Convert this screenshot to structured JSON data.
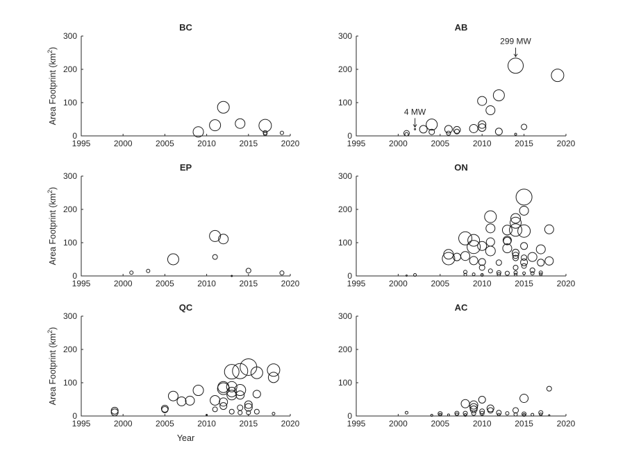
{
  "chart_data": [
    {
      "type": "scatter",
      "title": "BC",
      "xlabel": "",
      "ylabel": "Area Footprint (km2)",
      "xlim": [
        1995,
        2020
      ],
      "ylim": [
        0,
        300
      ],
      "xticks": [
        "1995",
        "2000",
        "2005",
        "2010",
        "2015",
        "2020"
      ],
      "yticks": [
        "0",
        "100",
        "200",
        "300"
      ],
      "points": [
        {
          "x": 2009,
          "y": 12,
          "s": 15
        },
        {
          "x": 2011,
          "y": 32,
          "s": 16
        },
        {
          "x": 2012,
          "y": 86,
          "s": 17
        },
        {
          "x": 2014,
          "y": 37,
          "s": 14
        },
        {
          "x": 2017,
          "y": 31,
          "s": 18
        },
        {
          "x": 2017,
          "y": 10,
          "s": 6
        },
        {
          "x": 2017,
          "y": 6,
          "s": 5
        },
        {
          "x": 2019,
          "y": 9,
          "s": 5
        }
      ],
      "annotations": []
    },
    {
      "type": "scatter",
      "title": "AB",
      "xlabel": "",
      "ylabel": "",
      "xlim": [
        1995,
        2020
      ],
      "ylim": [
        0,
        300
      ],
      "xticks": [
        "1995",
        "2000",
        "2005",
        "2010",
        "2015",
        "2020"
      ],
      "yticks": [
        "0",
        "100",
        "200",
        "300"
      ],
      "points": [
        {
          "x": 2001,
          "y": 8,
          "s": 8
        },
        {
          "x": 2001,
          "y": 5,
          "s": 5
        },
        {
          "x": 2002,
          "y": 20,
          "s": 2
        },
        {
          "x": 2003,
          "y": 20,
          "s": 11
        },
        {
          "x": 2004,
          "y": 34,
          "s": 16
        },
        {
          "x": 2004,
          "y": 12,
          "s": 8
        },
        {
          "x": 2006,
          "y": 20,
          "s": 11
        },
        {
          "x": 2006,
          "y": 8,
          "s": 6
        },
        {
          "x": 2007,
          "y": 18,
          "s": 10
        },
        {
          "x": 2007,
          "y": 13,
          "s": 7
        },
        {
          "x": 2009,
          "y": 22,
          "s": 12
        },
        {
          "x": 2010,
          "y": 105,
          "s": 13
        },
        {
          "x": 2010,
          "y": 34,
          "s": 11
        },
        {
          "x": 2010,
          "y": 25,
          "s": 11
        },
        {
          "x": 2011,
          "y": 77,
          "s": 13
        },
        {
          "x": 2012,
          "y": 122,
          "s": 16
        },
        {
          "x": 2012,
          "y": 13,
          "s": 10
        },
        {
          "x": 2014,
          "y": 211,
          "s": 22
        },
        {
          "x": 2014,
          "y": 5,
          "s": 3
        },
        {
          "x": 2015,
          "y": 27,
          "s": 8
        },
        {
          "x": 2019,
          "y": 182,
          "s": 18
        }
      ],
      "annotations": [
        {
          "text": "4 MW",
          "x": 2002,
          "y": 20
        },
        {
          "text": "299 MW",
          "x": 2014,
          "y": 211
        }
      ]
    },
    {
      "type": "scatter",
      "title": "EP",
      "xlabel": "",
      "ylabel": "Area Footprint (km2)",
      "xlim": [
        1995,
        2020
      ],
      "ylim": [
        0,
        300
      ],
      "xticks": [
        "1995",
        "2000",
        "2005",
        "2010",
        "2015",
        "2020"
      ],
      "yticks": [
        "0",
        "100",
        "200",
        "300"
      ],
      "points": [
        {
          "x": 2001,
          "y": 10,
          "s": 5
        },
        {
          "x": 2003,
          "y": 15,
          "s": 5
        },
        {
          "x": 2006,
          "y": 50,
          "s": 16
        },
        {
          "x": 2011,
          "y": 120,
          "s": 16
        },
        {
          "x": 2011,
          "y": 57,
          "s": 7
        },
        {
          "x": 2012,
          "y": 111,
          "s": 14
        },
        {
          "x": 2013,
          "y": 0,
          "s": 2
        },
        {
          "x": 2015,
          "y": 16,
          "s": 7
        },
        {
          "x": 2019,
          "y": 9,
          "s": 6
        }
      ],
      "annotations": []
    },
    {
      "type": "scatter",
      "title": "ON",
      "xlabel": "",
      "ylabel": "",
      "xlim": [
        1995,
        2020
      ],
      "ylim": [
        0,
        300
      ],
      "xticks": [
        "1995",
        "2000",
        "2005",
        "2010",
        "2015",
        "2020"
      ],
      "yticks": [
        "0",
        "100",
        "200",
        "300"
      ],
      "points": [
        {
          "x": 2001,
          "y": 1,
          "s": 2
        },
        {
          "x": 2002,
          "y": 3,
          "s": 4
        },
        {
          "x": 2006,
          "y": 65,
          "s": 14
        },
        {
          "x": 2006,
          "y": 52,
          "s": 18
        },
        {
          "x": 2007,
          "y": 57,
          "s": 11
        },
        {
          "x": 2008,
          "y": 113,
          "s": 19
        },
        {
          "x": 2008,
          "y": 60,
          "s": 13
        },
        {
          "x": 2008,
          "y": 12,
          "s": 5
        },
        {
          "x": 2008,
          "y": 4,
          "s": 4
        },
        {
          "x": 2009,
          "y": 107,
          "s": 17
        },
        {
          "x": 2009,
          "y": 87,
          "s": 19
        },
        {
          "x": 2009,
          "y": 46,
          "s": 12
        },
        {
          "x": 2009,
          "y": 5,
          "s": 4
        },
        {
          "x": 2010,
          "y": 90,
          "s": 13
        },
        {
          "x": 2010,
          "y": 42,
          "s": 10
        },
        {
          "x": 2010,
          "y": 25,
          "s": 8
        },
        {
          "x": 2010,
          "y": 3,
          "s": 4
        },
        {
          "x": 2011,
          "y": 178,
          "s": 17
        },
        {
          "x": 2011,
          "y": 143,
          "s": 13
        },
        {
          "x": 2011,
          "y": 102,
          "s": 12
        },
        {
          "x": 2011,
          "y": 75,
          "s": 14
        },
        {
          "x": 2011,
          "y": 15,
          "s": 6
        },
        {
          "x": 2012,
          "y": 40,
          "s": 8
        },
        {
          "x": 2012,
          "y": 10,
          "s": 6
        },
        {
          "x": 2012,
          "y": 5,
          "s": 5
        },
        {
          "x": 2013,
          "y": 138,
          "s": 14
        },
        {
          "x": 2013,
          "y": 107,
          "s": 12
        },
        {
          "x": 2013,
          "y": 105,
          "s": 11
        },
        {
          "x": 2013,
          "y": 83,
          "s": 13
        },
        {
          "x": 2013,
          "y": 8,
          "s": 6
        },
        {
          "x": 2014,
          "y": 173,
          "s": 14
        },
        {
          "x": 2014,
          "y": 160,
          "s": 16
        },
        {
          "x": 2014,
          "y": 138,
          "s": 18
        },
        {
          "x": 2014,
          "y": 70,
          "s": 10
        },
        {
          "x": 2014,
          "y": 62,
          "s": 9
        },
        {
          "x": 2014,
          "y": 54,
          "s": 8
        },
        {
          "x": 2014,
          "y": 25,
          "s": 7
        },
        {
          "x": 2014,
          "y": 10,
          "s": 5
        },
        {
          "x": 2014,
          "y": 4,
          "s": 4
        },
        {
          "x": 2015,
          "y": 237,
          "s": 23
        },
        {
          "x": 2015,
          "y": 196,
          "s": 13
        },
        {
          "x": 2015,
          "y": 135,
          "s": 18
        },
        {
          "x": 2015,
          "y": 90,
          "s": 10
        },
        {
          "x": 2015,
          "y": 55,
          "s": 8
        },
        {
          "x": 2015,
          "y": 41,
          "s": 10
        },
        {
          "x": 2015,
          "y": 30,
          "s": 7
        },
        {
          "x": 2015,
          "y": 8,
          "s": 4
        },
        {
          "x": 2016,
          "y": 57,
          "s": 13
        },
        {
          "x": 2016,
          "y": 17,
          "s": 7
        },
        {
          "x": 2016,
          "y": 8,
          "s": 5
        },
        {
          "x": 2017,
          "y": 80,
          "s": 13
        },
        {
          "x": 2017,
          "y": 40,
          "s": 10
        },
        {
          "x": 2017,
          "y": 10,
          "s": 5
        },
        {
          "x": 2017,
          "y": 5,
          "s": 4
        },
        {
          "x": 2018,
          "y": 140,
          "s": 13
        },
        {
          "x": 2018,
          "y": 45,
          "s": 12
        }
      ],
      "annotations": []
    },
    {
      "type": "scatter",
      "title": "QC",
      "xlabel": "Year",
      "ylabel": "Area Footprint (km2)",
      "xlim": [
        1995,
        2020
      ],
      "ylim": [
        0,
        300
      ],
      "xticks": [
        "1995",
        "2000",
        "2005",
        "2010",
        "2015",
        "2020"
      ],
      "yticks": [
        "0",
        "100",
        "200",
        "300"
      ],
      "points": [
        {
          "x": 1999,
          "y": 16,
          "s": 10
        },
        {
          "x": 1999,
          "y": 11,
          "s": 10
        },
        {
          "x": 2005,
          "y": 22,
          "s": 10
        },
        {
          "x": 2005,
          "y": 19,
          "s": 9
        },
        {
          "x": 2006,
          "y": 60,
          "s": 14
        },
        {
          "x": 2007,
          "y": 44,
          "s": 13
        },
        {
          "x": 2008,
          "y": 46,
          "s": 13
        },
        {
          "x": 2009,
          "y": 77,
          "s": 15
        },
        {
          "x": 2010,
          "y": 3,
          "s": 2
        },
        {
          "x": 2011,
          "y": 47,
          "s": 14
        },
        {
          "x": 2011,
          "y": 20,
          "s": 7
        },
        {
          "x": 2012,
          "y": 87,
          "s": 16
        },
        {
          "x": 2012,
          "y": 82,
          "s": 17
        },
        {
          "x": 2012,
          "y": 42,
          "s": 12
        },
        {
          "x": 2012,
          "y": 30,
          "s": 10
        },
        {
          "x": 2013,
          "y": 133,
          "s": 21
        },
        {
          "x": 2013,
          "y": 88,
          "s": 15
        },
        {
          "x": 2013,
          "y": 72,
          "s": 14
        },
        {
          "x": 2013,
          "y": 63,
          "s": 14
        },
        {
          "x": 2013,
          "y": 13,
          "s": 7
        },
        {
          "x": 2014,
          "y": 135,
          "s": 22
        },
        {
          "x": 2014,
          "y": 78,
          "s": 16
        },
        {
          "x": 2014,
          "y": 63,
          "s": 12
        },
        {
          "x": 2014,
          "y": 25,
          "s": 8
        },
        {
          "x": 2014,
          "y": 10,
          "s": 6
        },
        {
          "x": 2015,
          "y": 147,
          "s": 24
        },
        {
          "x": 2015,
          "y": 34,
          "s": 11
        },
        {
          "x": 2015,
          "y": 26,
          "s": 11
        },
        {
          "x": 2015,
          "y": 10,
          "s": 6
        },
        {
          "x": 2016,
          "y": 130,
          "s": 17
        },
        {
          "x": 2016,
          "y": 66,
          "s": 11
        },
        {
          "x": 2016,
          "y": 13,
          "s": 7
        },
        {
          "x": 2018,
          "y": 138,
          "s": 18
        },
        {
          "x": 2018,
          "y": 116,
          "s": 15
        },
        {
          "x": 2018,
          "y": 7,
          "s": 4
        }
      ],
      "annotations": []
    },
    {
      "type": "scatter",
      "title": "AC",
      "xlabel": "",
      "ylabel": "",
      "xlim": [
        1995,
        2020
      ],
      "ylim": [
        0,
        300
      ],
      "xticks": [
        "1995",
        "2000",
        "2005",
        "2010",
        "2015",
        "2020"
      ],
      "yticks": [
        "0",
        "100",
        "200",
        "300"
      ],
      "points": [
        {
          "x": 2001,
          "y": 10,
          "s": 4
        },
        {
          "x": 2004,
          "y": 2,
          "s": 3
        },
        {
          "x": 2005,
          "y": 7,
          "s": 6
        },
        {
          "x": 2005,
          "y": 4,
          "s": 4
        },
        {
          "x": 2006,
          "y": 3,
          "s": 3
        },
        {
          "x": 2007,
          "y": 8,
          "s": 6
        },
        {
          "x": 2007,
          "y": 5,
          "s": 4
        },
        {
          "x": 2008,
          "y": 37,
          "s": 12
        },
        {
          "x": 2008,
          "y": 8,
          "s": 6
        },
        {
          "x": 2008,
          "y": 3,
          "s": 4
        },
        {
          "x": 2009,
          "y": 33,
          "s": 12
        },
        {
          "x": 2009,
          "y": 26,
          "s": 11
        },
        {
          "x": 2009,
          "y": 20,
          "s": 10
        },
        {
          "x": 2009,
          "y": 8,
          "s": 6
        },
        {
          "x": 2010,
          "y": 49,
          "s": 10
        },
        {
          "x": 2010,
          "y": 14,
          "s": 7
        },
        {
          "x": 2010,
          "y": 8,
          "s": 6
        },
        {
          "x": 2011,
          "y": 23,
          "s": 10
        },
        {
          "x": 2011,
          "y": 17,
          "s": 8
        },
        {
          "x": 2012,
          "y": 10,
          "s": 7
        },
        {
          "x": 2012,
          "y": 4,
          "s": 4
        },
        {
          "x": 2013,
          "y": 8,
          "s": 5
        },
        {
          "x": 2014,
          "y": 17,
          "s": 8
        },
        {
          "x": 2014,
          "y": 5,
          "s": 5
        },
        {
          "x": 2015,
          "y": 53,
          "s": 12
        },
        {
          "x": 2015,
          "y": 6,
          "s": 6
        },
        {
          "x": 2015,
          "y": 3,
          "s": 4
        },
        {
          "x": 2016,
          "y": 4,
          "s": 4
        },
        {
          "x": 2017,
          "y": 10,
          "s": 6
        },
        {
          "x": 2017,
          "y": 5,
          "s": 4
        },
        {
          "x": 2018,
          "y": 82,
          "s": 7
        },
        {
          "x": 2018,
          "y": 2,
          "s": 2
        }
      ],
      "annotations": []
    }
  ]
}
